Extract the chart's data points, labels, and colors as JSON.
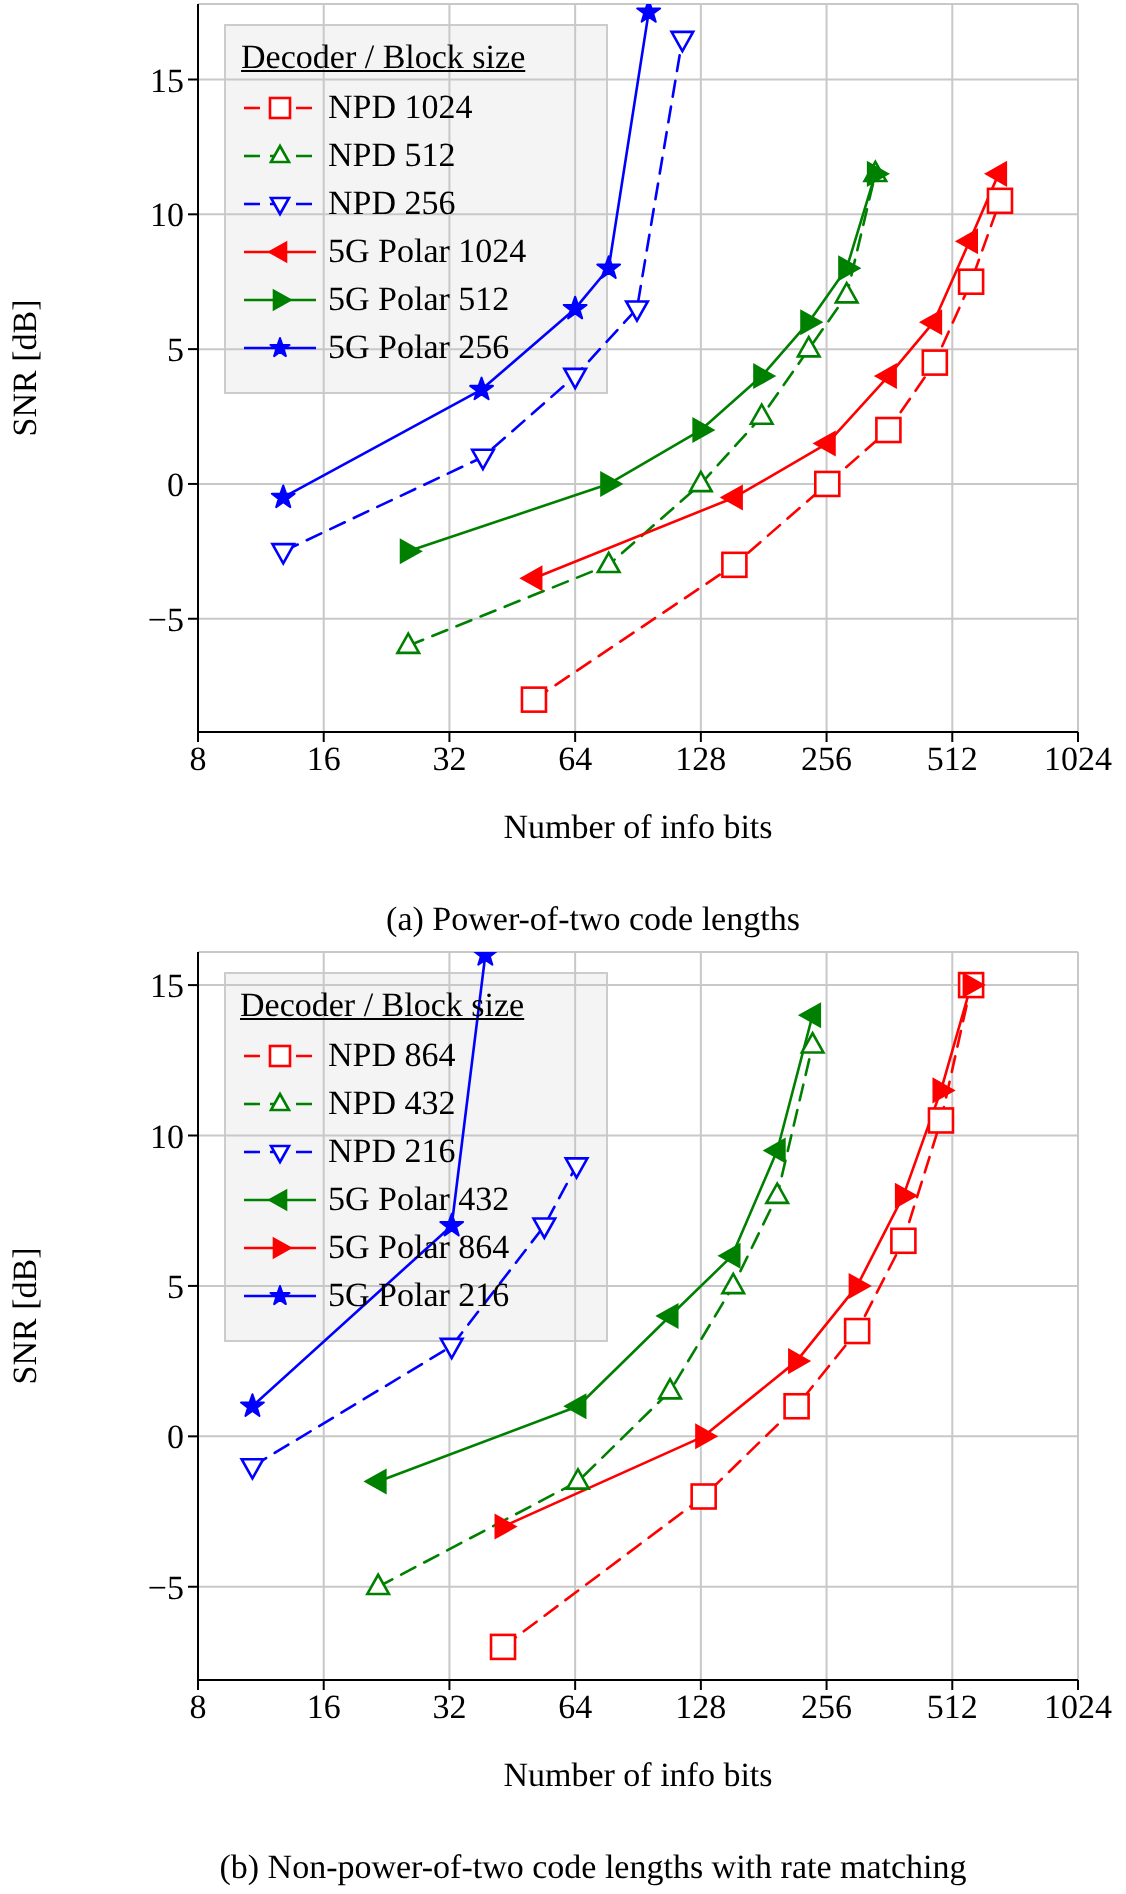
{
  "chart_data": [
    {
      "type": "line",
      "title": "(a) Power-of-two code lengths",
      "xlabel": "Number of info bits",
      "ylabel": "SNR [dB]",
      "legend_title": "Decoder / Block size",
      "log": "x",
      "xlim": [
        8,
        1024
      ],
      "xticks": [
        8,
        16,
        32,
        64,
        128,
        256,
        512,
        1024
      ],
      "ylim": [
        -9.2,
        17.8
      ],
      "yticks": [
        -5,
        0,
        5,
        10,
        15
      ],
      "grid": true,
      "legend": "top left",
      "series": [
        {
          "name": "NPD 1024",
          "color": "#ff0000",
          "marker": "square",
          "line_style": "dashed",
          "x": [
            51,
            154,
            257,
            360,
            465,
            568,
            666
          ],
          "values": [
            -8,
            -3,
            0,
            2,
            4.5,
            7.5,
            10.5
          ]
        },
        {
          "name": "NPD 512",
          "color": "#008000",
          "marker": "triangle",
          "line_style": "dashed",
          "x": [
            25.5,
            77,
            128,
            179,
            232,
            286,
            335
          ],
          "values": [
            -6,
            -3,
            0,
            2.5,
            5,
            7,
            11.5
          ]
        },
        {
          "name": "NPD 256",
          "color": "#0000ff",
          "marker": "triangle-down",
          "line_style": "dashed",
          "x": [
            12.8,
            38.5,
            64,
            90,
            115.6
          ],
          "values": [
            -2.5,
            1,
            4,
            6.5,
            16.5
          ]
        },
        {
          "name": "5G Polar 1024",
          "color": "#ff0000",
          "marker": "triangle-left",
          "line_style": "solid",
          "x": [
            51,
            154,
            257,
            360,
            462,
            563,
            661
          ],
          "values": [
            -3.5,
            -0.5,
            1.5,
            4,
            6,
            9,
            11.5
          ]
        },
        {
          "name": "5G Polar 512",
          "color": "#008000",
          "marker": "triangle-right",
          "line_style": "solid",
          "x": [
            25.5,
            77,
            128,
            179,
            232,
            286,
            335
          ],
          "values": [
            -2.5,
            0,
            2,
            4,
            6,
            8,
            11.5
          ]
        },
        {
          "name": "5G Polar 256",
          "color": "#0000ff",
          "marker": "star",
          "line_style": "solid",
          "x": [
            12.8,
            38.2,
            64,
            77,
            96
          ],
          "values": [
            -0.5,
            3.5,
            6.5,
            8,
            17.5
          ]
        }
      ]
    },
    {
      "type": "line",
      "title": "(b) Non-power-of-two code lengths with rate matching",
      "xlabel": "Number of info bits",
      "ylabel": "SNR [dB]",
      "legend_title": "Decoder / Block size",
      "log": "x",
      "xlim": [
        8,
        1024
      ],
      "xticks": [
        8,
        16,
        32,
        64,
        128,
        256,
        512,
        1024
      ],
      "ylim": [
        -8.1,
        16.1
      ],
      "yticks": [
        -5,
        0,
        5,
        10,
        15
      ],
      "grid": true,
      "legend": "top left",
      "series": [
        {
          "name": "NPD 864",
          "color": "#ff0000",
          "marker": "square",
          "line_style": "dashed",
          "x": [
            43,
            130,
            217,
            303,
            391,
            481,
            568
          ],
          "values": [
            -7,
            -2,
            1,
            3.5,
            6.5,
            10.5,
            15
          ]
        },
        {
          "name": "NPD 432",
          "color": "#008000",
          "marker": "triangle",
          "line_style": "dashed",
          "x": [
            21.6,
            65,
            108,
            153,
            195,
            237
          ],
          "values": [
            -5,
            -1.5,
            1.5,
            5,
            8,
            13
          ]
        },
        {
          "name": "NPD 216",
          "color": "#0000ff",
          "marker": "triangle-down",
          "line_style": "dashed",
          "x": [
            10.8,
            32.4,
            54,
            64.5
          ],
          "values": [
            -1,
            3,
            7,
            9
          ]
        },
        {
          "name": "5G Polar 432",
          "color": "#008000",
          "marker": "triangle-left",
          "line_style": "solid",
          "x": [
            21.6,
            65,
            108,
            152,
            195,
            237
          ],
          "values": [
            -1.5,
            1,
            4,
            6,
            9.5,
            14
          ]
        },
        {
          "name": "5G Polar 864",
          "color": "#ff0000",
          "marker": "triangle-right",
          "line_style": "solid",
          "x": [
            43,
            130,
            217,
            303,
            391,
            481,
            568
          ],
          "values": [
            -3,
            0,
            2.5,
            5,
            8,
            11.5,
            15
          ]
        },
        {
          "name": "5G Polar 216",
          "color": "#0000ff",
          "marker": "star",
          "line_style": "solid",
          "x": [
            10.8,
            32.4,
            39
          ],
          "values": [
            1,
            7,
            16
          ]
        }
      ]
    }
  ]
}
